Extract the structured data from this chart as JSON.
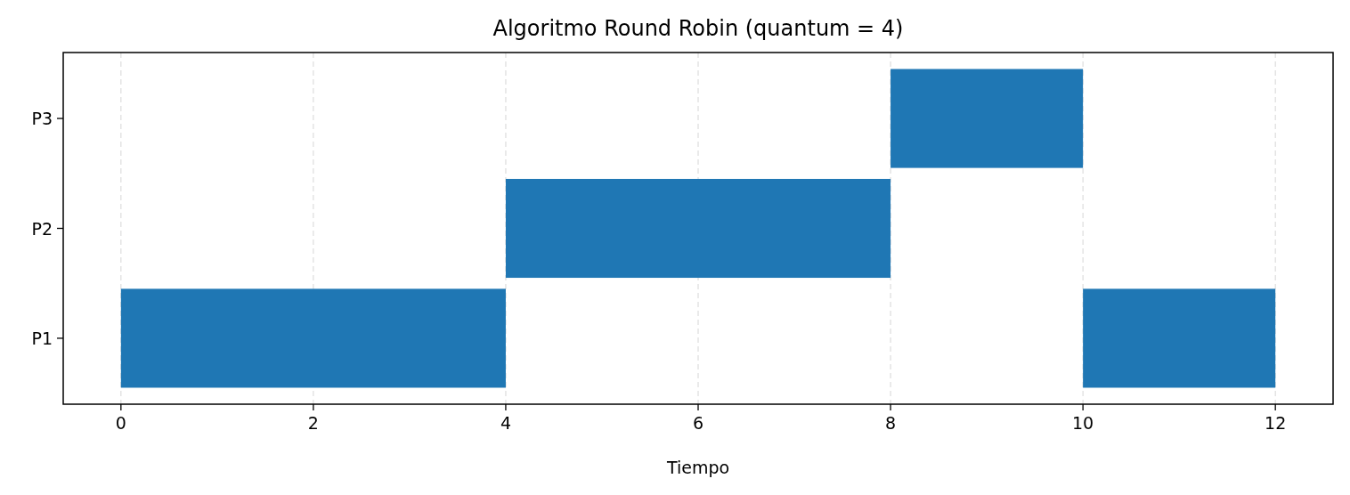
{
  "chart_data": {
    "type": "bar",
    "orientation": "horizontal",
    "title": "Algoritmo Round Robin (quantum = 4)",
    "xlabel": "Tiempo",
    "categories": [
      "P3",
      "P2",
      "P1"
    ],
    "series": [
      {
        "color": "#1f77b4",
        "values": [
          2,
          4,
          4
        ],
        "base": [
          8,
          4,
          0
        ]
      },
      {
        "color": "#1f77b4",
        "values": [
          null,
          null,
          2
        ],
        "base": [
          null,
          null,
          10
        ]
      }
    ],
    "xlim": [
      -0.6,
      12.6
    ],
    "xticks": [
      0,
      2,
      4,
      6,
      8,
      10,
      12
    ],
    "grid": "x"
  }
}
